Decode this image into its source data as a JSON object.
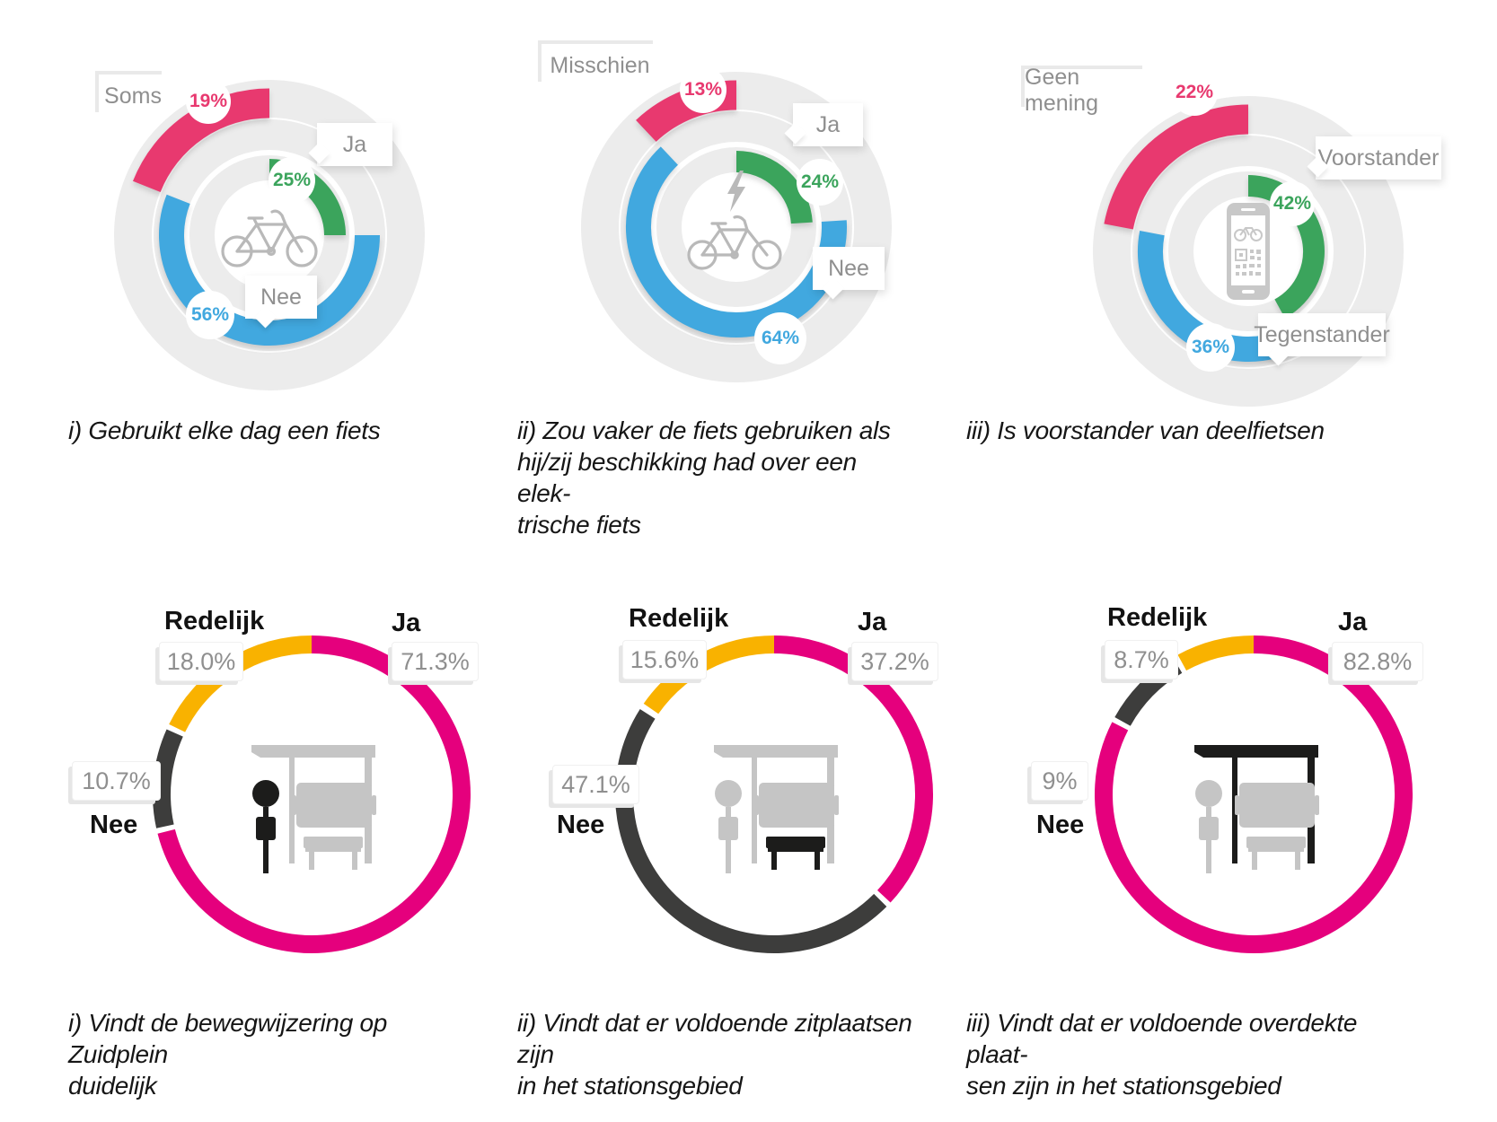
{
  "colors": {
    "pink": "#E8396F",
    "green": "#3BA45C",
    "blue": "#41A8DF",
    "magenta": "#E5007D",
    "yellow": "#F9B200",
    "dark": "#3D3D3C",
    "ring_gray": "#ECECEC",
    "icon_gray": "#C5C5C5",
    "icon_outline_gray": "#B9B9B9",
    "icon_black": "#1C1C1B",
    "label_gray": "#8F8F8F",
    "text_black": "#161616"
  },
  "chart_data": [
    {
      "type": "donut",
      "style": "multi-ring",
      "title": "i) Gebruikt elke dag een fiets",
      "center_icon": "bicycle-icon",
      "legend_position": "around",
      "segments": [
        {
          "label": "Ja",
          "value": 25,
          "value_label": "25%",
          "color": "green",
          "ring": "inner"
        },
        {
          "label": "Nee",
          "value": 56,
          "value_label": "56%",
          "color": "blue",
          "ring": "middle"
        },
        {
          "label": "Soms",
          "value": 19,
          "value_label": "19%",
          "color": "pink",
          "ring": "outer"
        }
      ]
    },
    {
      "type": "donut",
      "style": "multi-ring",
      "title": "ii) Zou vaker de fiets gebruiken als\nhij/zij beschikking had over een elek-\ntrische fiets",
      "center_icon": "electric-bicycle-icon",
      "legend_position": "around",
      "segments": [
        {
          "label": "Ja",
          "value": 24,
          "value_label": "24%",
          "color": "green",
          "ring": "inner"
        },
        {
          "label": "Nee",
          "value": 64,
          "value_label": "64%",
          "color": "blue",
          "ring": "middle"
        },
        {
          "label": "Misschien",
          "value": 13,
          "value_label": "13%",
          "color": "pink",
          "ring": "outer"
        }
      ]
    },
    {
      "type": "donut",
      "style": "multi-ring",
      "title": "iii) Is voorstander van deelfietsen",
      "center_icon": "bike-share-app-icon",
      "legend_position": "around",
      "segments": [
        {
          "label": "Voorstander",
          "value": 42,
          "value_label": "42%",
          "color": "green",
          "ring": "inner"
        },
        {
          "label": "Tegenstander",
          "value": 36,
          "value_label": "36%",
          "color": "blue",
          "ring": "middle"
        },
        {
          "label": "Geen mening",
          "value": 22,
          "value_label": "22%",
          "color": "pink",
          "ring": "outer"
        }
      ]
    },
    {
      "type": "donut",
      "style": "single-ring",
      "title": "i) Vindt de bewegwijzering op Zuidplein\nduidelijk",
      "center_icon": "bus-stop-sign-icon",
      "legend_position": "around",
      "segments": [
        {
          "label": "Ja",
          "value": 71.3,
          "value_label": "71.3%",
          "color": "magenta"
        },
        {
          "label": "Nee",
          "value": 10.7,
          "value_label": "10.7%",
          "color": "dark"
        },
        {
          "label": "Redelijk",
          "value": 18.0,
          "value_label": "18.0%",
          "color": "yellow"
        }
      ]
    },
    {
      "type": "donut",
      "style": "single-ring",
      "title": "ii) Vindt dat er voldoende zitplaatsen zijn\nin het stationsgebied",
      "center_icon": "bus-stop-bench-icon",
      "legend_position": "around",
      "segments": [
        {
          "label": "Ja",
          "value": 37.2,
          "value_label": "37.2%",
          "color": "magenta"
        },
        {
          "label": "Nee",
          "value": 47.1,
          "value_label": "47.1%",
          "color": "dark"
        },
        {
          "label": "Redelijk",
          "value": 15.6,
          "value_label": "15.6%",
          "color": "yellow"
        }
      ]
    },
    {
      "type": "donut",
      "style": "single-ring",
      "title": "iii) Vindt dat er voldoende overdekte plaat-\nsen zijn in het stationsgebied",
      "center_icon": "bus-shelter-icon",
      "legend_position": "around",
      "segments": [
        {
          "label": "Ja",
          "value": 82.8,
          "value_label": "82.8%",
          "color": "magenta"
        },
        {
          "label": "Nee",
          "value": 9,
          "value_label": "9%",
          "color": "dark"
        },
        {
          "label": "Redelijk",
          "value": 8.7,
          "value_label": "8.7%",
          "color": "yellow"
        }
      ]
    }
  ]
}
